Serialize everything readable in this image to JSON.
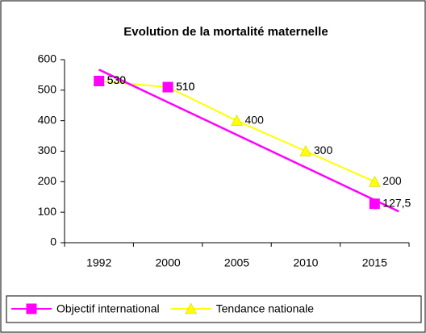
{
  "chart_data": {
    "type": "line",
    "title": "Evolution de la mortalité maternelle",
    "categories": [
      "1992",
      "2000",
      "2005",
      "2010",
      "2015"
    ],
    "series": [
      {
        "name": "Objectif international",
        "color": "#ff00ff",
        "marker": "square",
        "trendline": true,
        "values": [
          530,
          510,
          null,
          null,
          127.5
        ],
        "value_labels": [
          "530",
          "510",
          null,
          null,
          "127,5"
        ]
      },
      {
        "name": "Tendance nationale",
        "color": "#ffff00",
        "marker": "triangle",
        "values": [
          530,
          510,
          400,
          300,
          200
        ],
        "value_labels": [
          "530",
          "510",
          "400",
          "300",
          "200"
        ]
      }
    ],
    "ylim": [
      0,
      600
    ],
    "yticks": [
      0,
      100,
      200,
      300,
      400,
      500,
      600
    ],
    "grid": false,
    "legend": "bottom"
  }
}
